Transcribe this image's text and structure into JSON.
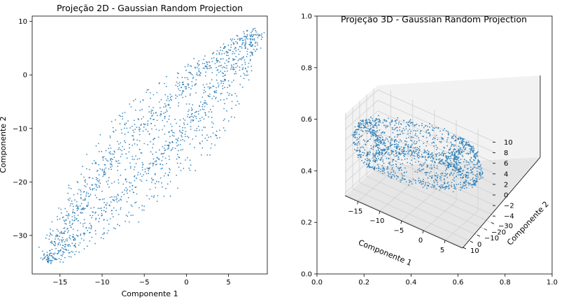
{
  "chart_data": [
    {
      "type": "scatter",
      "title": "Projeção 2D - Gaussian Random Projection",
      "xlabel": "Componente 1",
      "ylabel": "Componente 2",
      "xlim": [
        -18.3,
        9.6
      ],
      "ylim": [
        -37.2,
        11.0
      ],
      "xticks": [
        "−15",
        "−10",
        "−5",
        "0",
        "5"
      ],
      "xtick_values": [
        -15,
        -10,
        -5,
        0,
        5
      ],
      "yticks": [
        "10",
        "0",
        "−10",
        "−20",
        "−30"
      ],
      "ytick_values": [
        10,
        0,
        -10,
        -20,
        -30
      ],
      "grid": false,
      "point_color": "#1f77b4",
      "n_points": 1500,
      "point_cloud": {
        "shape": "elongated diagonal band with two dense inner ridges",
        "from": [
          -16.5,
          -35.0
        ],
        "to": [
          8.5,
          8.0
        ]
      }
    },
    {
      "type": "scatter",
      "projection": "3d",
      "title": "Projeção 3D - Gaussian Random Projection",
      "xlabel": "Componente 1",
      "ylabel": "Componente 2",
      "zlabel": "",
      "xlim": [
        -18,
        9
      ],
      "ylim": [
        -36,
        11
      ],
      "zlim": [
        -4.5,
        11
      ],
      "xticks": [
        "−15",
        "−10",
        "−5",
        "0",
        "5"
      ],
      "xtick_values": [
        -15,
        -10,
        -5,
        0,
        5
      ],
      "yticks": [
        "10",
        "0",
        "−10",
        "−20",
        "−30"
      ],
      "ytick_values": [
        10,
        0,
        -10,
        -20,
        -30
      ],
      "zticks": [
        "10",
        "8",
        "6",
        "4",
        "2",
        "0",
        "−2",
        "−4"
      ],
      "ztick_values": [
        10,
        8,
        6,
        4,
        2,
        0,
        -2,
        -4
      ],
      "background_axes": {
        "xlim": [
          0.0,
          1.0
        ],
        "ylim": [
          0.0,
          1.0
        ],
        "xticks": [
          "0.0",
          "0.2",
          "0.4",
          "0.6",
          "0.8",
          "1.0"
        ],
        "yticks": [
          "1.0",
          "0.8",
          "0.6",
          "0.4",
          "0.2",
          "0.0"
        ]
      },
      "grid": true,
      "point_color": "#1f77b4",
      "n_points": 1500,
      "point_cloud": {
        "shape": "flattened ring / tube structure"
      }
    }
  ]
}
